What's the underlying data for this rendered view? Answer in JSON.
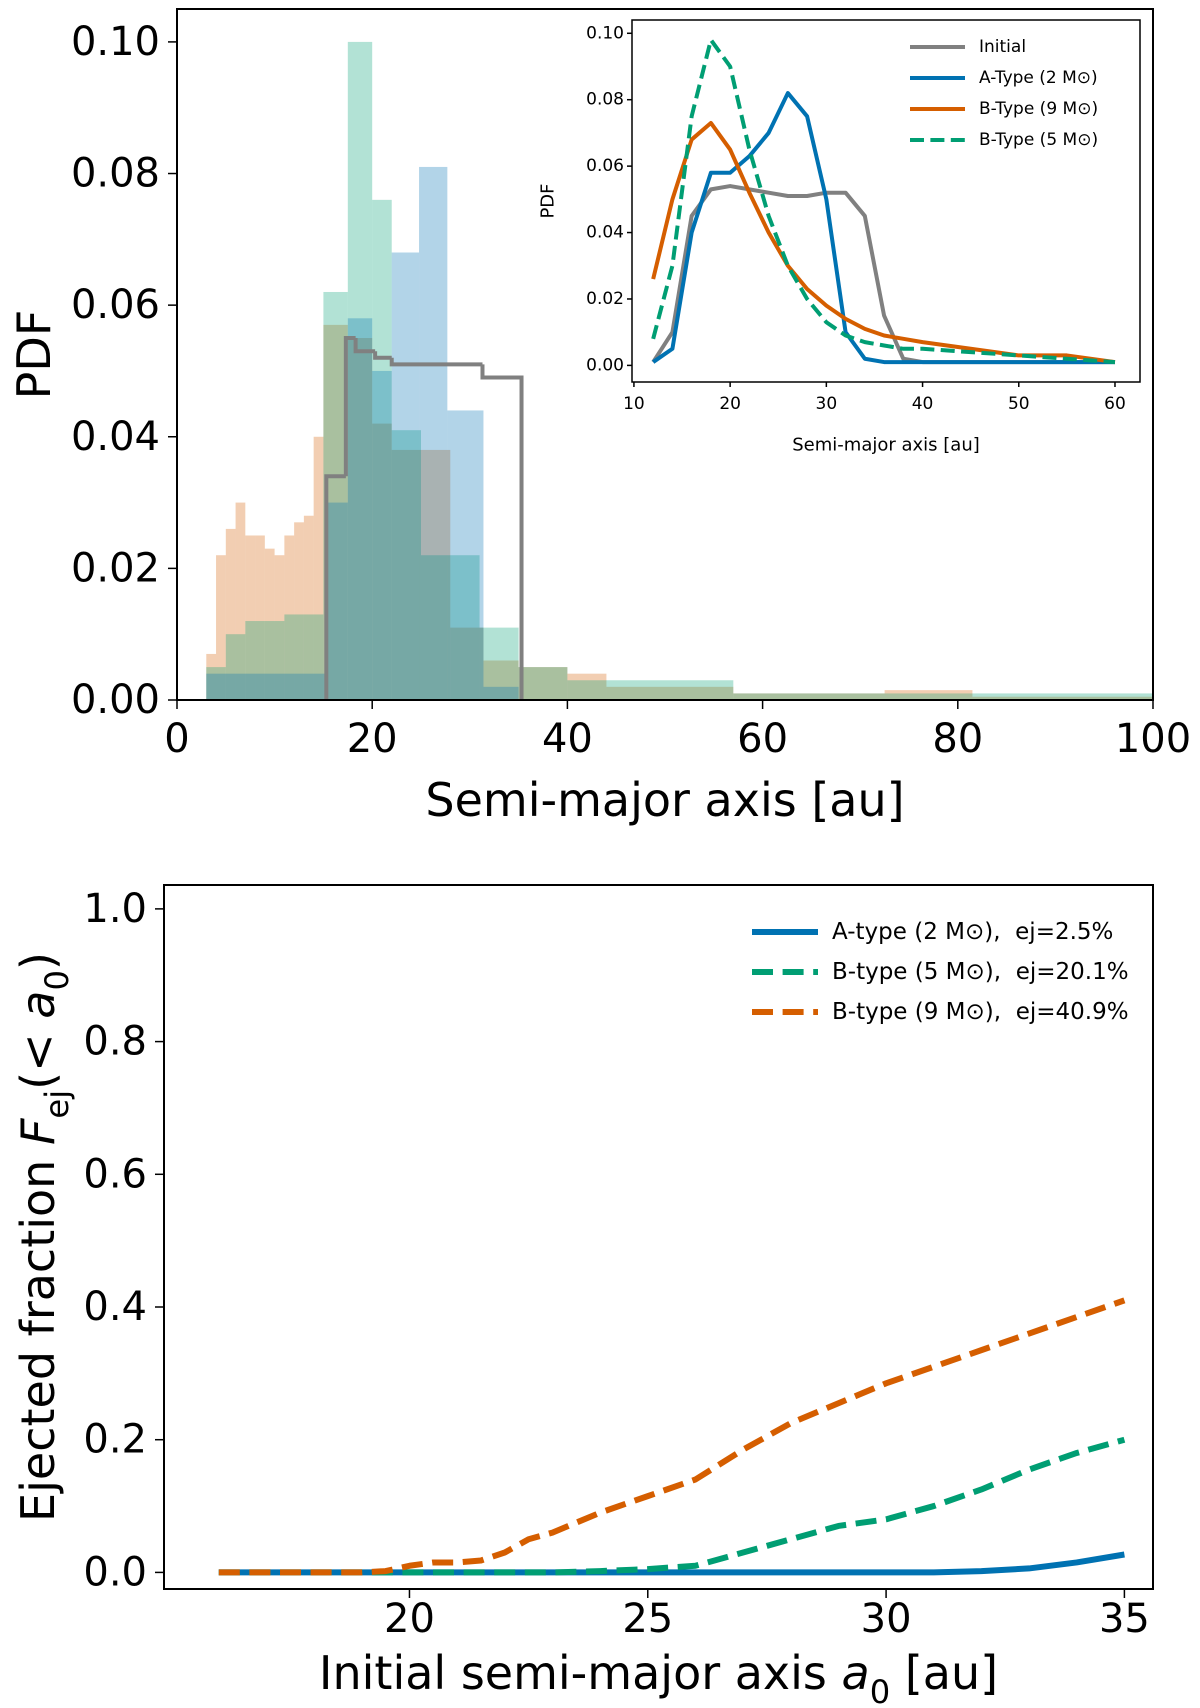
{
  "chart_data": [
    {
      "type": "histogram",
      "xlim": [
        0,
        100
      ],
      "ylim": [
        0,
        0.105
      ],
      "xticks": [
        0,
        20,
        40,
        60,
        80,
        100
      ],
      "yticks": [
        {
          "value": 0,
          "label": "0.00"
        },
        {
          "value": 0.02,
          "label": "0.02"
        },
        {
          "value": 0.04,
          "label": "0.04"
        },
        {
          "value": 0.06,
          "label": "0.06"
        },
        {
          "value": 0.08,
          "label": "0.08"
        },
        {
          "value": 0.1,
          "label": "0.10"
        }
      ],
      "xlabel": "Semi-major axis [au]",
      "ylabel": "PDF",
      "series": [
        {
          "color": "#d55e00",
          "histtype": "stepfilled",
          "alpha": 0.3,
          "bins": [
            3,
            4,
            5,
            6,
            7,
            8,
            9,
            10,
            11,
            12,
            13,
            14,
            15,
            17.5,
            20,
            22,
            25,
            28,
            31.4,
            35,
            40,
            44,
            57,
            72.5,
            81.5,
            100
          ],
          "counts": [
            0.007,
            0.022,
            0.026,
            0.03,
            0.025,
            0.025,
            0.023,
            0.022,
            0.025,
            0.027,
            0.028,
            0.04,
            0.057,
            0.055,
            0.042,
            0.038,
            0.038,
            0.011,
            0.006,
            0.005,
            0.004,
            0.002,
            0.001,
            0.0015,
            0.0005
          ]
        },
        {
          "color": "#009e73",
          "histtype": "stepfilled",
          "alpha": 0.3,
          "bins": [
            3,
            5,
            7,
            9,
            11,
            13,
            15,
            17.5,
            20,
            22,
            25,
            28,
            31,
            35,
            40,
            57,
            100
          ],
          "counts": [
            0.005,
            0.01,
            0.012,
            0.012,
            0.013,
            0.013,
            0.062,
            0.1,
            0.076,
            0.041,
            0.022,
            0.022,
            0.011,
            0.005,
            0.003,
            0.001
          ]
        },
        {
          "color": "#0072b2",
          "histtype": "stepfilled",
          "alpha": 0.3,
          "bins": [
            3,
            15.3,
            17.5,
            20,
            22,
            24.8,
            27.7,
            31.4,
            35
          ],
          "counts": [
            0.004,
            0.03,
            0.058,
            0.05,
            0.068,
            0.081,
            0.044,
            0.002
          ]
        },
        {
          "color": "#808080",
          "histtype": "step",
          "alpha": 1,
          "bins": [
            15.3,
            17.3,
            18.3,
            20.3,
            22,
            31.3,
            35.3
          ],
          "counts": [
            0.034,
            0.055,
            0.053,
            0.052,
            0.051,
            0.049
          ]
        }
      ]
    },
    {
      "type": "line",
      "xlim": [
        9.8,
        62.6
      ],
      "ylim": [
        -0.005,
        0.104
      ],
      "xticks": [
        10,
        20,
        30,
        40,
        50,
        60
      ],
      "yticks": [
        {
          "value": 0,
          "label": "0.00"
        },
        {
          "value": 0.02,
          "label": "0.02"
        },
        {
          "value": 0.04,
          "label": "0.04"
        },
        {
          "value": 0.06,
          "label": "0.06"
        },
        {
          "value": 0.08,
          "label": "0.08"
        },
        {
          "value": 0.1,
          "label": "0.10"
        }
      ],
      "xlabel": "Semi-major axis [au]",
      "ylabel": "PDF",
      "legend": "upper right",
      "x": [
        12,
        14,
        16,
        18,
        20,
        22,
        24,
        26,
        28,
        30,
        32,
        34,
        36,
        38,
        40,
        45,
        50,
        55,
        60
      ],
      "series": [
        {
          "name": "Initial",
          "color": "#808080",
          "linestyle": "solid",
          "values": [
            0.001,
            0.01,
            0.045,
            0.053,
            0.054,
            0.053,
            0.052,
            0.051,
            0.051,
            0.052,
            0.052,
            0.045,
            0.015,
            0.002,
            0.001,
            0.001,
            0.001,
            0.001,
            0.001
          ]
        },
        {
          "name": "A-Type (2 M⊙)",
          "color": "#0072b2",
          "linestyle": "solid",
          "values": [
            0.001,
            0.005,
            0.04,
            0.058,
            0.058,
            0.063,
            0.07,
            0.082,
            0.075,
            0.05,
            0.01,
            0.002,
            0.001,
            0.001,
            0.001,
            0.001,
            0.001,
            0.001,
            0.001
          ]
        },
        {
          "name": "B-Type (9 M⊙)",
          "color": "#d55e00",
          "linestyle": "solid",
          "values": [
            0.026,
            0.05,
            0.068,
            0.073,
            0.065,
            0.052,
            0.04,
            0.03,
            0.023,
            0.018,
            0.014,
            0.011,
            0.009,
            0.008,
            0.007,
            0.005,
            0.003,
            0.003,
            0.001
          ]
        },
        {
          "name": "B-Type (5 M⊙)",
          "color": "#009e73",
          "linestyle": "dashed",
          "values": [
            0.008,
            0.03,
            0.075,
            0.098,
            0.09,
            0.065,
            0.045,
            0.03,
            0.02,
            0.013,
            0.009,
            0.007,
            0.006,
            0.005,
            0.005,
            0.004,
            0.003,
            0.002,
            0.001
          ]
        }
      ]
    },
    {
      "type": "line",
      "xlim": [
        14.85,
        35.6
      ],
      "ylim": [
        -0.025,
        1.036
      ],
      "xticks": [
        20,
        25,
        30,
        35
      ],
      "yticks": [
        {
          "value": 0,
          "label": "0.0"
        },
        0.2,
        0.4,
        0.6,
        0.8,
        {
          "value": 1,
          "label": "1.0"
        }
      ],
      "xlabel": [
        "Initial semi-major axis ",
        "a",
        "0",
        " [au]"
      ],
      "ylabel": [
        "Ejected fraction ",
        "F",
        "ej",
        "(< ",
        "a",
        "0",
        ")"
      ],
      "legend": "upper right",
      "x": [
        16,
        17,
        18,
        19,
        19.5,
        20,
        20.5,
        21,
        21.5,
        22,
        22.5,
        23,
        24,
        25,
        26,
        27,
        28,
        29,
        30,
        31,
        32,
        33,
        34,
        35
      ],
      "series": [
        {
          "name": "A-type (2 M⊙),  ej=2.5%",
          "color": "#0072b2",
          "linestyle": "solid",
          "values": [
            0,
            0,
            0,
            0,
            0,
            0,
            0,
            0,
            0,
            0,
            0,
            0,
            0,
            0,
            0,
            0,
            0,
            0,
            0,
            0,
            0.002,
            0.006,
            0.015,
            0.027
          ]
        },
        {
          "name": "B-type (5 M⊙),  ej=20.1%",
          "color": "#009e73",
          "linestyle": "dashed",
          "values": [
            0,
            0,
            0,
            0,
            0,
            0,
            0,
            0,
            0,
            0,
            0,
            0,
            0.002,
            0.005,
            0.01,
            0.03,
            0.05,
            0.07,
            0.08,
            0.1,
            0.125,
            0.155,
            0.18,
            0.2
          ]
        },
        {
          "name": "B-type (9 M⊙),  ej=40.9%",
          "color": "#d55e00",
          "linestyle": "dashed",
          "values": [
            0,
            0,
            0,
            0,
            0.002,
            0.01,
            0.015,
            0.015,
            0.018,
            0.03,
            0.05,
            0.06,
            0.09,
            0.115,
            0.14,
            0.185,
            0.225,
            0.255,
            0.285,
            0.31,
            0.335,
            0.36,
            0.385,
            0.41
          ]
        }
      ]
    }
  ]
}
